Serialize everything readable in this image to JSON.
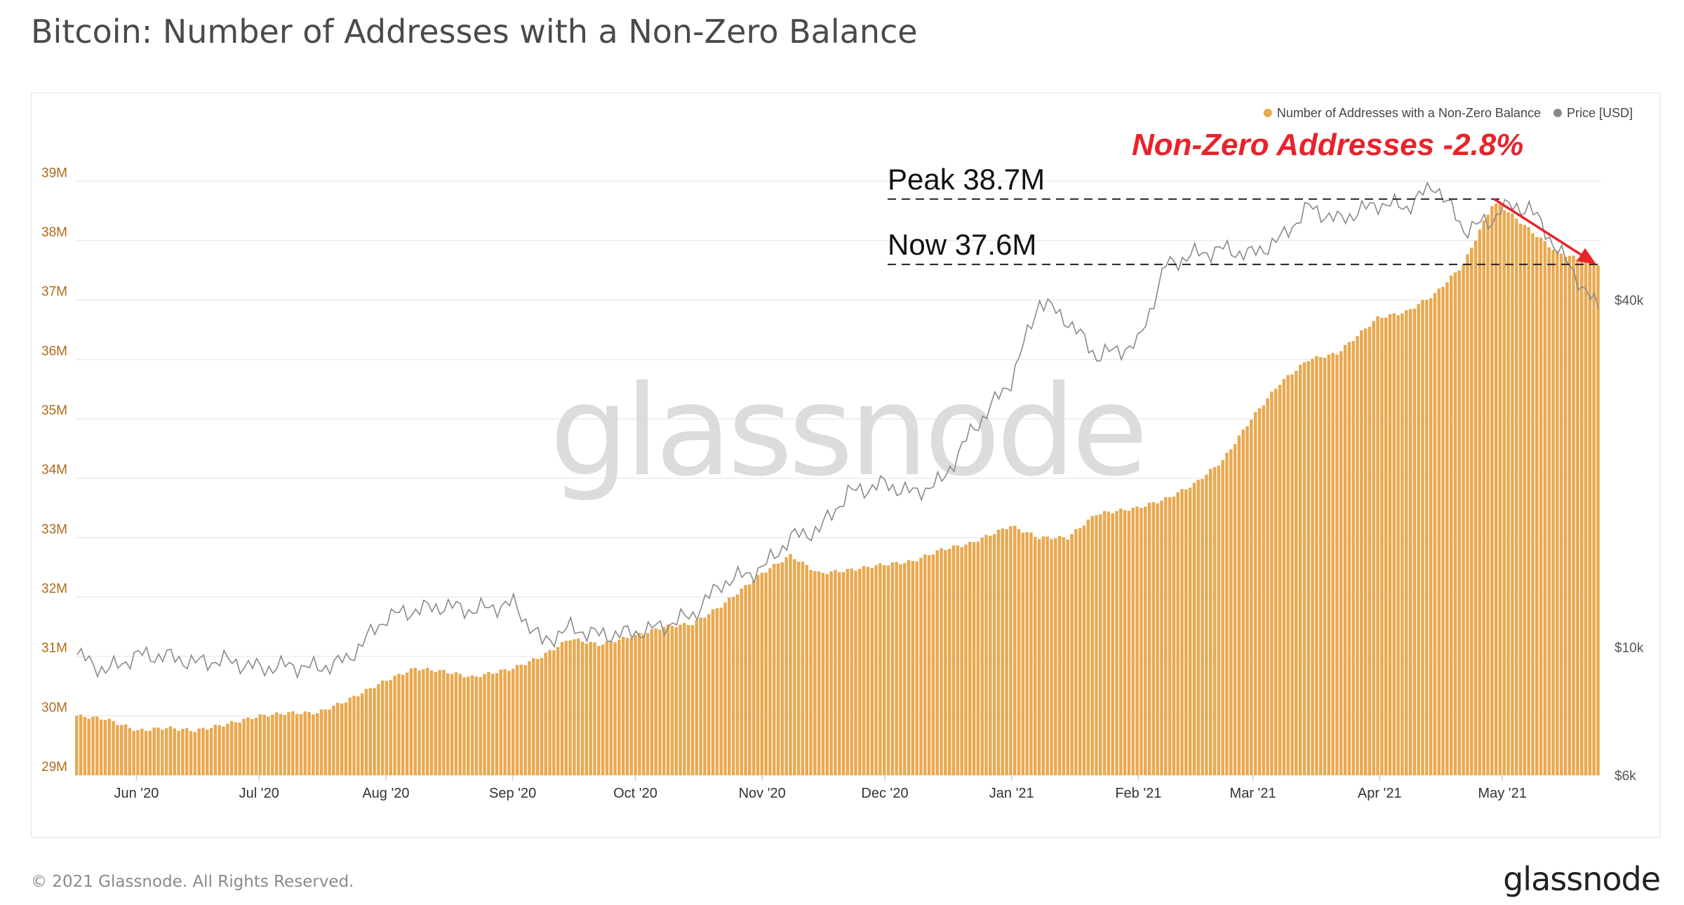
{
  "title": "Bitcoin: Number of Addresses with a Non-Zero Balance",
  "footer": {
    "copyright": "© 2021 Glassnode. All Rights Reserved.",
    "logo": "glassnode"
  },
  "watermark": "glassnode",
  "colors": {
    "bars": "#e8a94f",
    "price_line": "#8a8a8a",
    "annotation_red": "#e8232a",
    "grid": "#ececec",
    "axis_text": "#b06a1a",
    "right_axis_text": "#555555"
  },
  "chart_data": {
    "type": "bar",
    "title": "Bitcoin: Number of Addresses with a Non-Zero Balance",
    "legend": [
      {
        "name": "Number of Addresses with a Non-Zero Balance",
        "color": "#e8a94f"
      },
      {
        "name": "Price [USD]",
        "color": "#888888"
      }
    ],
    "legend_position": "top-right",
    "x_ticks": [
      "Jun '20",
      "Jul '20",
      "Aug '20",
      "Sep '20",
      "Oct '20",
      "Nov '20",
      "Dec '20",
      "Jan '21",
      "Feb '21",
      "Mar '21",
      "Apr '21",
      "May '21"
    ],
    "x_tick_dates": [
      "2020-06-01",
      "2020-07-01",
      "2020-08-01",
      "2020-09-01",
      "2020-10-01",
      "2020-11-01",
      "2020-12-01",
      "2021-01-01",
      "2021-02-01",
      "2021-03-01",
      "2021-04-01",
      "2021-05-01"
    ],
    "x_range": [
      "2020-05-17",
      "2021-05-25"
    ],
    "y_left": {
      "ticks": [
        "29M",
        "30M",
        "31M",
        "32M",
        "33M",
        "34M",
        "35M",
        "36M",
        "37M",
        "38M",
        "39M"
      ],
      "range_millions": [
        29,
        39.3
      ]
    },
    "y_right": {
      "ticks": [
        "$6k",
        "$10k",
        "$40k"
      ],
      "tick_values": [
        6000,
        10000,
        40000
      ],
      "scale": "log",
      "range": [
        6000,
        69000
      ]
    },
    "grid": true,
    "series": [
      {
        "name": "Number of Addresses with a Non-Zero Balance",
        "kind": "bar",
        "unit": "millions",
        "points": [
          [
            "2020-05-17",
            30.0
          ],
          [
            "2020-05-24",
            29.95
          ],
          [
            "2020-06-01",
            29.75
          ],
          [
            "2020-06-08",
            29.8
          ],
          [
            "2020-06-15",
            29.75
          ],
          [
            "2020-06-22",
            29.85
          ],
          [
            "2020-07-01",
            30.0
          ],
          [
            "2020-07-08",
            30.05
          ],
          [
            "2020-07-15",
            30.05
          ],
          [
            "2020-07-22",
            30.25
          ],
          [
            "2020-08-01",
            30.6
          ],
          [
            "2020-08-08",
            30.8
          ],
          [
            "2020-08-15",
            30.75
          ],
          [
            "2020-08-22",
            30.65
          ],
          [
            "2020-09-01",
            30.8
          ],
          [
            "2020-09-08",
            31.0
          ],
          [
            "2020-09-15",
            31.3
          ],
          [
            "2020-09-22",
            31.2
          ],
          [
            "2020-10-01",
            31.35
          ],
          [
            "2020-10-08",
            31.5
          ],
          [
            "2020-10-15",
            31.55
          ],
          [
            "2020-10-22",
            31.85
          ],
          [
            "2020-11-01",
            32.4
          ],
          [
            "2020-11-08",
            32.7
          ],
          [
            "2020-11-15",
            32.4
          ],
          [
            "2020-11-22",
            32.45
          ],
          [
            "2020-12-01",
            32.55
          ],
          [
            "2020-12-08",
            32.6
          ],
          [
            "2020-12-15",
            32.8
          ],
          [
            "2020-12-22",
            32.9
          ],
          [
            "2021-01-01",
            33.2
          ],
          [
            "2021-01-08",
            33.0
          ],
          [
            "2021-01-15",
            33.0
          ],
          [
            "2021-01-22",
            33.4
          ],
          [
            "2021-02-01",
            33.5
          ],
          [
            "2021-02-08",
            33.65
          ],
          [
            "2021-02-15",
            33.9
          ],
          [
            "2021-02-22",
            34.3
          ],
          [
            "2021-03-01",
            35.0
          ],
          [
            "2021-03-08",
            35.6
          ],
          [
            "2021-03-15",
            36.0
          ],
          [
            "2021-03-22",
            36.1
          ],
          [
            "2021-04-01",
            36.7
          ],
          [
            "2021-04-08",
            36.8
          ],
          [
            "2021-04-15",
            37.1
          ],
          [
            "2021-04-22",
            37.6
          ],
          [
            "2021-04-29",
            38.6
          ],
          [
            "2021-05-01",
            38.6
          ],
          [
            "2021-05-08",
            38.2
          ],
          [
            "2021-05-15",
            37.8
          ],
          [
            "2021-05-25",
            37.6
          ]
        ]
      },
      {
        "name": "Price [USD]",
        "kind": "line",
        "scale": "log",
        "points": [
          [
            "2020-05-17",
            9700
          ],
          [
            "2020-05-24",
            9100
          ],
          [
            "2020-06-01",
            9700
          ],
          [
            "2020-06-08",
            9650
          ],
          [
            "2020-06-15",
            9400
          ],
          [
            "2020-06-22",
            9500
          ],
          [
            "2020-07-01",
            9200
          ],
          [
            "2020-07-08",
            9300
          ],
          [
            "2020-07-15",
            9200
          ],
          [
            "2020-07-22",
            9500
          ],
          [
            "2020-08-01",
            11300
          ],
          [
            "2020-08-08",
            11600
          ],
          [
            "2020-08-15",
            11800
          ],
          [
            "2020-08-22",
            11600
          ],
          [
            "2020-09-01",
            11900
          ],
          [
            "2020-09-08",
            10200
          ],
          [
            "2020-09-15",
            10800
          ],
          [
            "2020-09-22",
            10500
          ],
          [
            "2020-10-01",
            10600
          ],
          [
            "2020-10-08",
            10900
          ],
          [
            "2020-10-15",
            11400
          ],
          [
            "2020-10-22",
            12900
          ],
          [
            "2020-11-01",
            13700
          ],
          [
            "2020-11-08",
            15500
          ],
          [
            "2020-11-15",
            16000
          ],
          [
            "2020-11-22",
            18500
          ],
          [
            "2020-12-01",
            19200
          ],
          [
            "2020-12-08",
            18500
          ],
          [
            "2020-12-15",
            19400
          ],
          [
            "2020-12-22",
            23500
          ],
          [
            "2021-01-01",
            29000
          ],
          [
            "2021-01-08",
            40000
          ],
          [
            "2021-01-15",
            36800
          ],
          [
            "2021-01-22",
            32000
          ],
          [
            "2021-02-01",
            33500
          ],
          [
            "2021-02-08",
            46000
          ],
          [
            "2021-02-15",
            48000
          ],
          [
            "2021-02-22",
            49000
          ],
          [
            "2021-03-01",
            48000
          ],
          [
            "2021-03-08",
            51000
          ],
          [
            "2021-03-15",
            58000
          ],
          [
            "2021-03-22",
            55000
          ],
          [
            "2021-04-01",
            58800
          ],
          [
            "2021-04-08",
            58000
          ],
          [
            "2021-04-15",
            63500
          ],
          [
            "2021-04-22",
            53000
          ],
          [
            "2021-04-29",
            55000
          ],
          [
            "2021-05-01",
            57800
          ],
          [
            "2021-05-08",
            58000
          ],
          [
            "2021-05-15",
            49000
          ],
          [
            "2021-05-25",
            38500
          ]
        ]
      }
    ],
    "annotations": {
      "peak_label": "Peak 38.7M",
      "peak_value": 38.7,
      "now_label": "Now 37.6M",
      "now_value": 37.6,
      "change_label": "Non-Zero Addresses -2.8%",
      "arrow_from": [
        "2021-04-29",
        38.7
      ],
      "arrow_to": [
        "2021-05-25",
        37.6
      ]
    }
  }
}
